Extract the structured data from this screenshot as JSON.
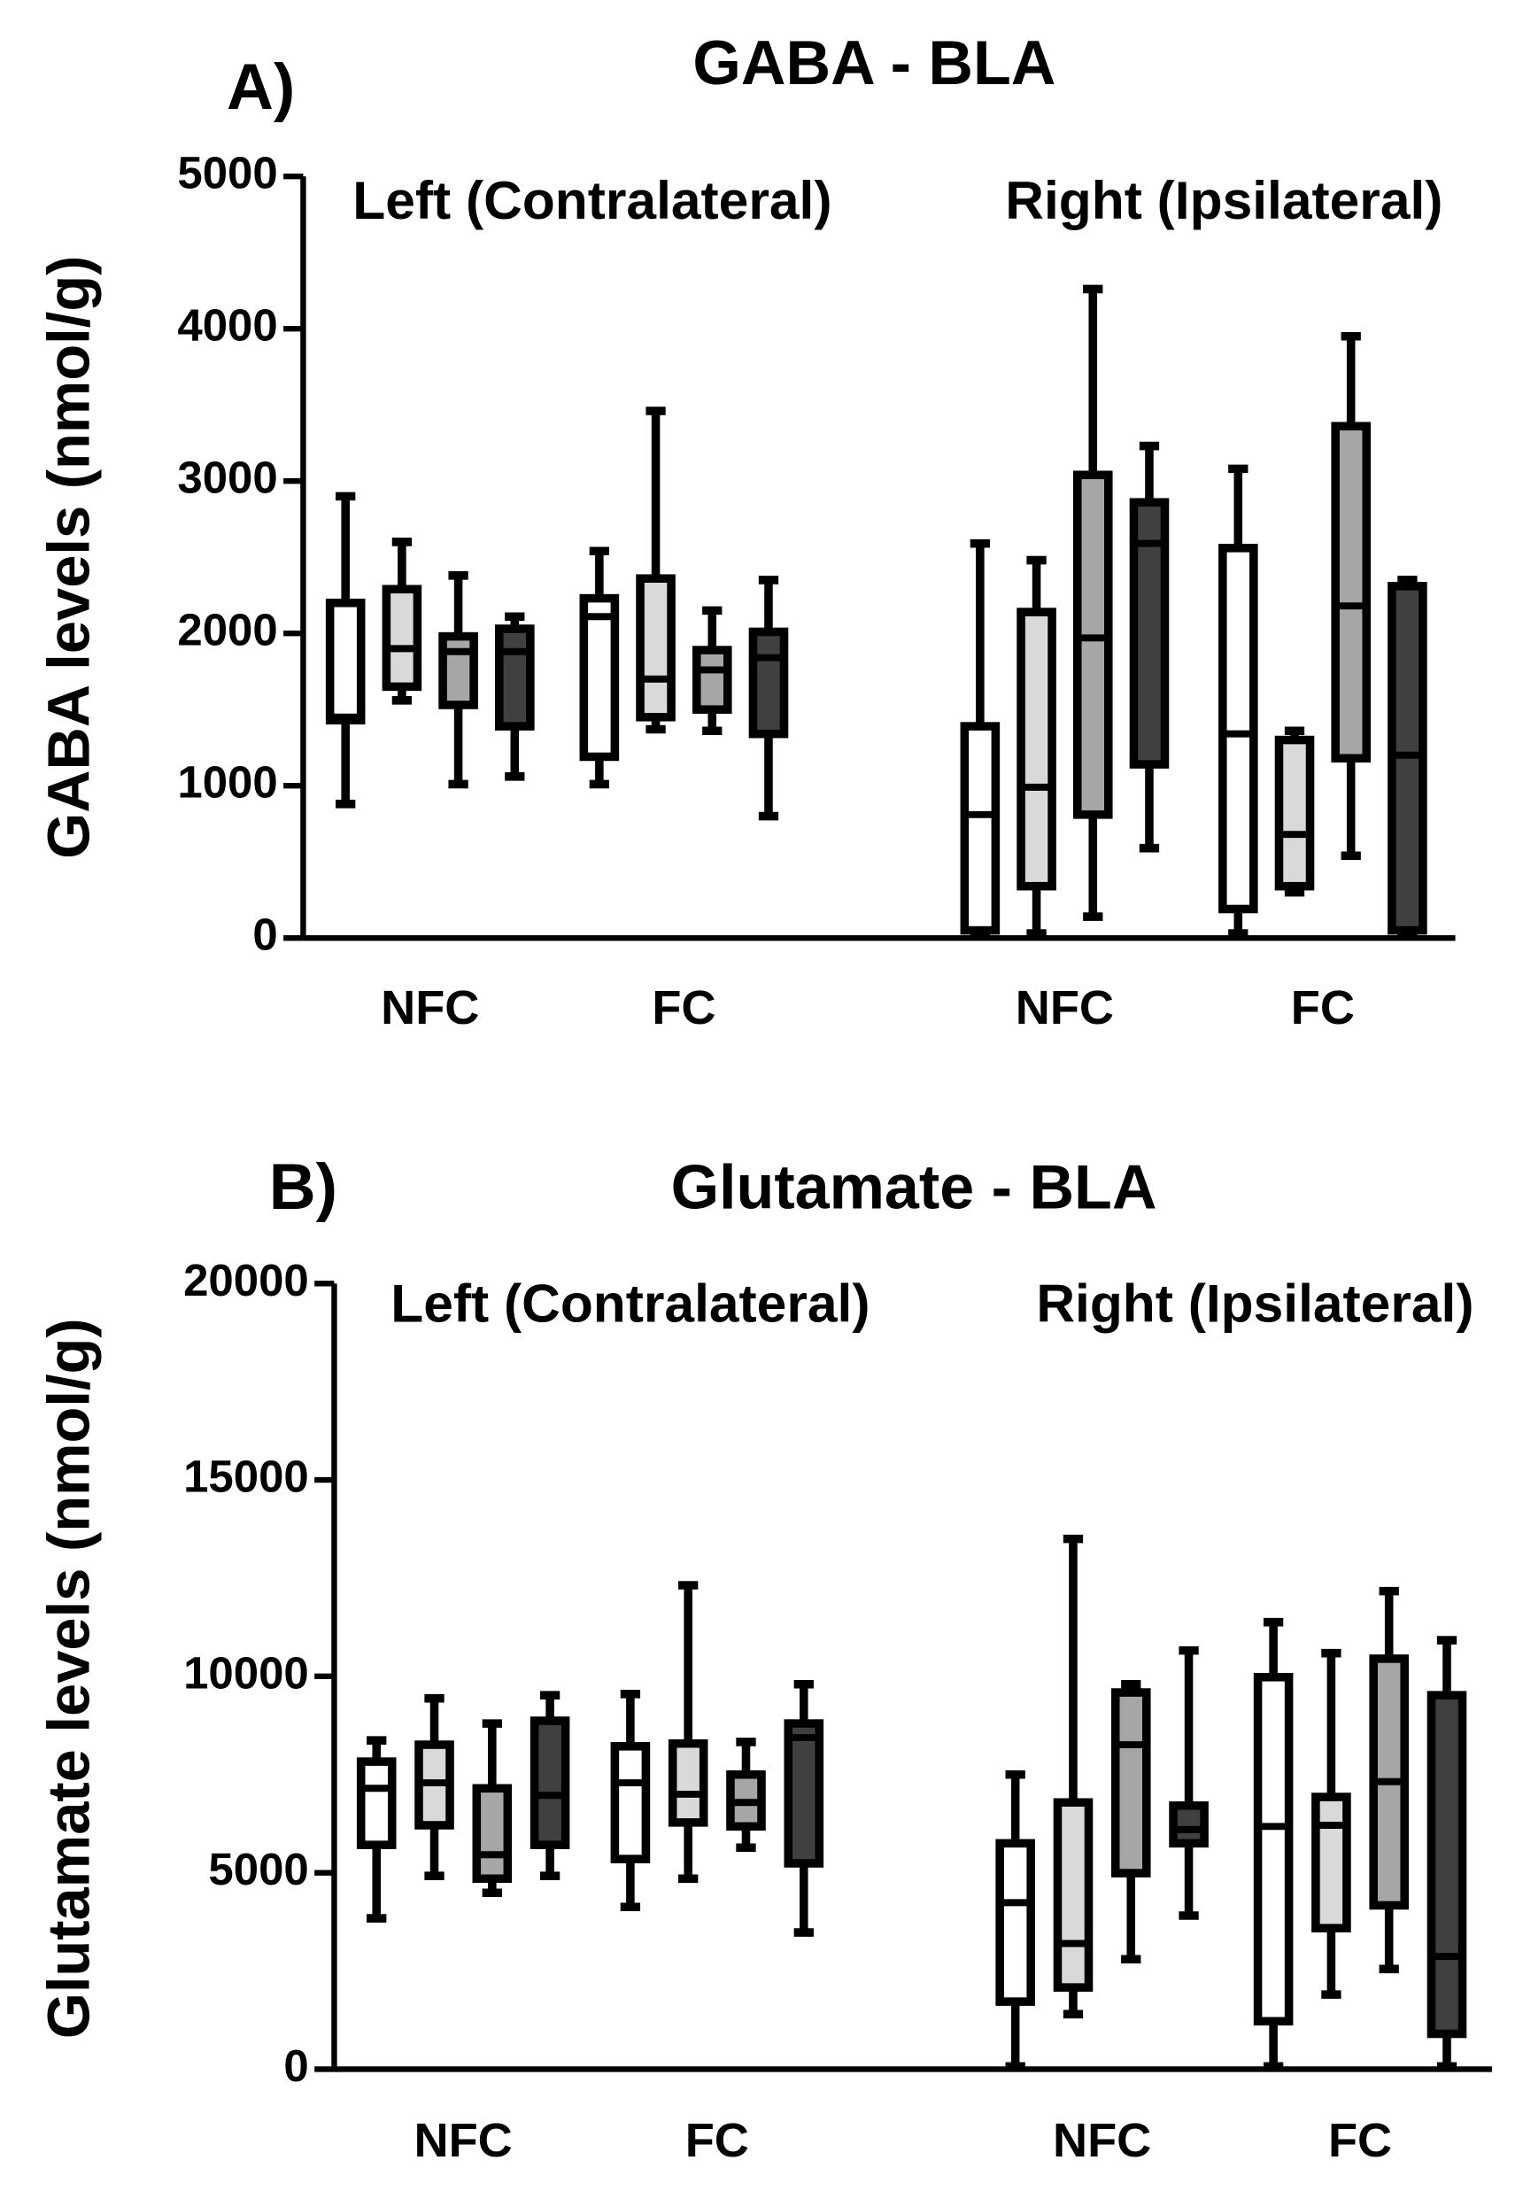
{
  "chart_data": [
    {
      "type": "box",
      "panel_label": "A)",
      "title": "GABA - BLA",
      "ylabel": "GABA levels (nmol/g)",
      "sections": [
        "Left (Contralateral)",
        "Right (Ipsilateral)"
      ],
      "categories": [
        "NFC",
        "FC",
        "NFC",
        "FC"
      ],
      "ylim": [
        0,
        5000
      ],
      "yticks": [
        0,
        1000,
        2000,
        3000,
        4000,
        5000
      ],
      "series": [
        {
          "color": "#ffffff",
          "values": [
            [
              880,
              1430,
              1450,
              2200,
              2900
            ],
            [
              1010,
              1190,
              2110,
              2230,
              2540
            ],
            [
              20,
              50,
              810,
              1390,
              2590
            ],
            [
              30,
              190,
              1340,
              2560,
              3080
            ]
          ]
        },
        {
          "color": "#d9d9d9",
          "values": [
            [
              1560,
              1650,
              1900,
              2290,
              2600
            ],
            [
              1370,
              1450,
              1700,
              2360,
              3460
            ],
            [
              30,
              340,
              990,
              2140,
              2480
            ],
            [
              300,
              340,
              680,
              1300,
              1360
            ]
          ]
        },
        {
          "color": "#a6a6a6",
          "values": [
            [
              1010,
              1530,
              1880,
              1980,
              2380
            ],
            [
              1360,
              1500,
              1760,
              1890,
              2150
            ],
            [
              140,
              810,
              1970,
              3040,
              4260
            ],
            [
              540,
              1180,
              2180,
              3360,
              3950
            ]
          ]
        },
        {
          "color": "#404040",
          "values": [
            [
              1060,
              1390,
              1880,
              2030,
              2110
            ],
            [
              800,
              1340,
              1840,
              2010,
              2350
            ],
            [
              590,
              1140,
              2590,
              2860,
              3230
            ],
            [
              20,
              50,
              1200,
              2310,
              2350
            ]
          ]
        }
      ]
    },
    {
      "type": "box",
      "panel_label": "B)",
      "title": "Glutamate - BLA",
      "ylabel": "Glutamate levels (nmol/g)",
      "sections": [
        "Left (Contralateral)",
        "Right (Ipsilateral)"
      ],
      "categories": [
        "NFC",
        "FC",
        "NFC",
        "FC"
      ],
      "ylim": [
        0,
        20000
      ],
      "yticks": [
        0,
        5000,
        10000,
        15000,
        20000
      ],
      "series": [
        {
          "color": "#ffffff",
          "values": [
            [
              3840,
              5710,
              7150,
              7830,
              8370
            ],
            [
              4130,
              5350,
              7290,
              8220,
              9550
            ],
            [
              70,
              1720,
              4240,
              5750,
              7500
            ],
            [
              70,
              1220,
              6180,
              9980,
              11380
            ]
          ]
        },
        {
          "color": "#d9d9d9",
          "values": [
            [
              4920,
              6210,
              7290,
              8260,
              9440
            ],
            [
              4850,
              6280,
              7000,
              8290,
              12320
            ],
            [
              1400,
              2080,
              3200,
              6790,
              13500
            ],
            [
              1900,
              3590,
              6210,
              6930,
              10590
            ]
          ]
        },
        {
          "color": "#a6a6a6",
          "values": [
            [
              4490,
              4850,
              5460,
              7150,
              8800
            ],
            [
              5640,
              6180,
              6790,
              7500,
              8330
            ],
            [
              2800,
              4990,
              8260,
              9590,
              9800
            ],
            [
              2550,
              4170,
              7320,
              10450,
              12170
            ]
          ]
        },
        {
          "color": "#404040",
          "values": [
            [
              4920,
              5710,
              6970,
              8870,
              9520
            ],
            [
              3480,
              5240,
              8440,
              8800,
              9800
            ],
            [
              3910,
              5750,
              6100,
              6710,
              10660
            ],
            [
              70,
              900,
              2870,
              9520,
              10920
            ]
          ]
        }
      ]
    }
  ]
}
